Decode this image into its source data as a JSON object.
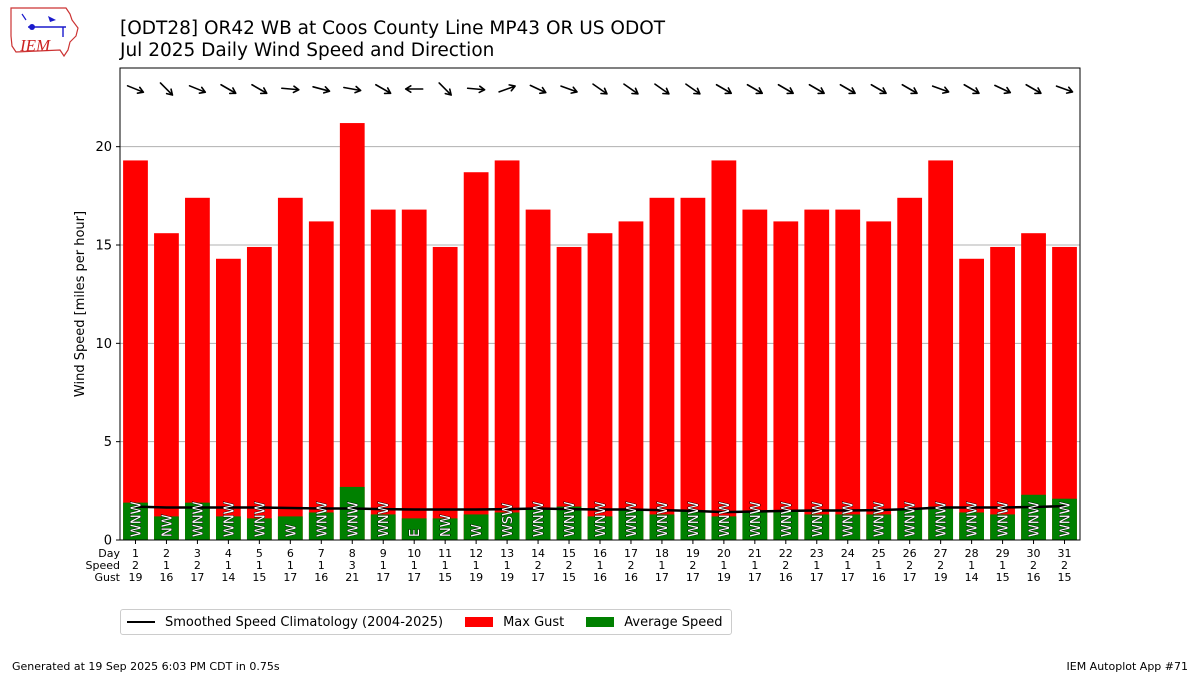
{
  "header": {
    "title_line1": "[ODT28] OR42 WB at Coos County Line MP43 OR US ODOT",
    "title_line2": "Jul 2025 Daily Wind Speed and Direction",
    "logo_text": "IEM"
  },
  "footer": {
    "left": "Generated at 19 Sep 2025 6:03 PM CDT in 0.75s",
    "right": "IEM Autoplot App #71"
  },
  "colors": {
    "gust": "#ff0000",
    "avg": "#008000",
    "clim": "#000000",
    "grid": "#b0b0b0",
    "logo": "#1a1acc",
    "logo_text": "#cc2222"
  },
  "legend": {
    "clim": "Smoothed Speed Climatology (2004-2025)",
    "gust": "Max Gust",
    "avg": "Average Speed"
  },
  "row_labels": [
    "Day",
    "Speed",
    "Gust"
  ],
  "chart_data": {
    "type": "bar",
    "ylabel": "Wind Speed [miles per hour]",
    "ylim": [
      0,
      24
    ],
    "yticks": [
      0,
      5,
      10,
      15,
      20
    ],
    "grid": "y",
    "days": [
      "1",
      "2",
      "3",
      "4",
      "5",
      "6",
      "7",
      "8",
      "9",
      "10",
      "11",
      "12",
      "13",
      "14",
      "15",
      "16",
      "17",
      "18",
      "19",
      "20",
      "21",
      "22",
      "23",
      "24",
      "25",
      "26",
      "27",
      "28",
      "29",
      "30",
      "31"
    ],
    "avg_speed_labels": [
      "2",
      "1",
      "2",
      "1",
      "1",
      "1",
      "1",
      "3",
      "1",
      "1",
      "1",
      "1",
      "1",
      "2",
      "2",
      "1",
      "2",
      "1",
      "2",
      "1",
      "1",
      "2",
      "1",
      "1",
      "1",
      "2",
      "2",
      "1",
      "1",
      "2",
      "2"
    ],
    "gust_labels": [
      "19",
      "16",
      "17",
      "14",
      "15",
      "17",
      "16",
      "21",
      "17",
      "17",
      "15",
      "19",
      "19",
      "17",
      "15",
      "16",
      "16",
      "17",
      "17",
      "19",
      "17",
      "16",
      "17",
      "17",
      "16",
      "17",
      "19",
      "14",
      "15",
      "16",
      "15"
    ],
    "max_gust": [
      19.3,
      15.6,
      17.4,
      14.3,
      14.9,
      17.4,
      16.2,
      21.2,
      16.8,
      16.8,
      14.9,
      18.7,
      19.3,
      16.8,
      14.9,
      15.6,
      16.2,
      17.4,
      17.4,
      19.3,
      16.8,
      16.2,
      16.8,
      16.8,
      16.2,
      17.4,
      19.3,
      14.3,
      14.9,
      15.6,
      14.9
    ],
    "avg_speed": [
      1.9,
      1.2,
      1.9,
      1.2,
      1.1,
      1.2,
      1.4,
      2.7,
      1.3,
      1.1,
      1.1,
      1.3,
      1.4,
      1.6,
      1.7,
      1.2,
      1.6,
      1.3,
      1.5,
      1.2,
      1.4,
      1.5,
      1.3,
      1.3,
      1.3,
      1.6,
      1.7,
      1.4,
      1.3,
      2.3,
      2.1
    ],
    "climatology": [
      1.7,
      1.65,
      1.65,
      1.65,
      1.65,
      1.63,
      1.6,
      1.6,
      1.57,
      1.55,
      1.55,
      1.55,
      1.57,
      1.6,
      1.57,
      1.55,
      1.55,
      1.52,
      1.48,
      1.42,
      1.45,
      1.48,
      1.5,
      1.5,
      1.52,
      1.57,
      1.65,
      1.65,
      1.65,
      1.68,
      1.72
    ],
    "directions": [
      "WNW",
      "NW",
      "WNW",
      "WNW",
      "WNW",
      "W",
      "WNW",
      "WNW",
      "WNW",
      "E",
      "NW",
      "W",
      "WSW",
      "WNW",
      "WNW",
      "WNW",
      "WNW",
      "WNW",
      "WNW",
      "WNW",
      "WNW",
      "WNW",
      "WNW",
      "WNW",
      "WNW",
      "WNW",
      "WNW",
      "WNW",
      "WNW",
      "WNW",
      "WNW"
    ],
    "arrow_directions_deg": [
      292,
      315,
      292,
      300,
      300,
      275,
      285,
      280,
      300,
      90,
      315,
      275,
      250,
      295,
      290,
      305,
      305,
      305,
      305,
      300,
      300,
      300,
      300,
      300,
      300,
      300,
      290,
      300,
      295,
      300,
      290
    ]
  }
}
